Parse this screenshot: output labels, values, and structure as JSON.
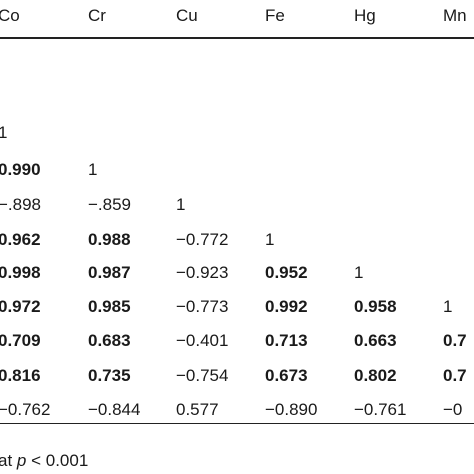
{
  "table": {
    "header": [
      "Co",
      "Cr",
      "Cu",
      "Fe",
      "Hg",
      "Mn"
    ],
    "rows": [
      [
        {
          "text": "1",
          "bold": false
        }
      ],
      [
        {
          "text": "0.990",
          "bold": true
        },
        {
          "text": "1",
          "bold": false
        }
      ],
      [
        {
          "text": "−.898",
          "bold": false
        },
        {
          "text": "−.859",
          "bold": false
        },
        {
          "text": "1",
          "bold": false
        }
      ],
      [
        {
          "text": "0.962",
          "bold": true
        },
        {
          "text": "0.988",
          "bold": true
        },
        {
          "text": "−0.772",
          "bold": false
        },
        {
          "text": "1",
          "bold": false
        }
      ],
      [
        {
          "text": "0.998",
          "bold": true
        },
        {
          "text": "0.987",
          "bold": true
        },
        {
          "text": "−0.923",
          "bold": false
        },
        {
          "text": "0.952",
          "bold": true
        },
        {
          "text": "1",
          "bold": false
        }
      ],
      [
        {
          "text": "0.972",
          "bold": true
        },
        {
          "text": "0.985",
          "bold": true
        },
        {
          "text": "−0.773",
          "bold": false
        },
        {
          "text": "0.992",
          "bold": true
        },
        {
          "text": "0.958",
          "bold": true
        },
        {
          "text": "1",
          "bold": false
        }
      ],
      [
        {
          "text": "0.709",
          "bold": true
        },
        {
          "text": "0.683",
          "bold": true
        },
        {
          "text": "−0.401",
          "bold": false
        },
        {
          "text": "0.713",
          "bold": true
        },
        {
          "text": "0.663",
          "bold": true
        },
        {
          "text": "0.7",
          "bold": true
        }
      ],
      [
        {
          "text": "0.816",
          "bold": true
        },
        {
          "text": "0.735",
          "bold": true
        },
        {
          "text": "−0.754",
          "bold": false
        },
        {
          "text": "0.673",
          "bold": true
        },
        {
          "text": "0.802",
          "bold": true
        },
        {
          "text": "0.7",
          "bold": true
        }
      ],
      [
        {
          "text": "−0.762",
          "bold": false
        },
        {
          "text": "−0.844",
          "bold": false
        },
        {
          "text": "0.577",
          "bold": false
        },
        {
          "text": "−0.890",
          "bold": false
        },
        {
          "text": "−0.761",
          "bold": false
        },
        {
          "text": "−0",
          "bold": false
        }
      ]
    ]
  },
  "footnote": {
    "prefix": "at ",
    "italic": "p",
    "suffix": " < 0.001"
  }
}
